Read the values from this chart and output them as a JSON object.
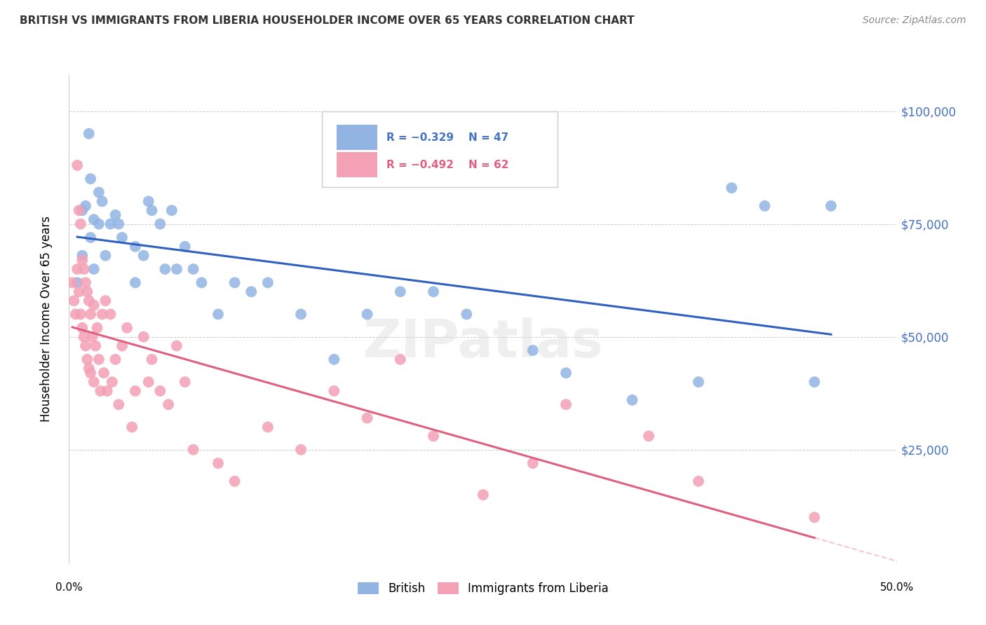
{
  "title": "BRITISH VS IMMIGRANTS FROM LIBERIA HOUSEHOLDER INCOME OVER 65 YEARS CORRELATION CHART",
  "source": "Source: ZipAtlas.com",
  "ylabel": "Householder Income Over 65 years",
  "legend_label_british": "British",
  "legend_label_liberia": "Immigrants from Liberia",
  "british_R": "-0.329",
  "british_N": "47",
  "liberia_R": "-0.492",
  "liberia_N": "62",
  "yticks": [
    0,
    25000,
    50000,
    75000,
    100000
  ],
  "ytick_labels": [
    "",
    "$25,000",
    "$50,000",
    "$75,000",
    "$100,000"
  ],
  "xlim": [
    0.0,
    0.5
  ],
  "ylim": [
    0,
    108000
  ],
  "british_color": "#92b4e3",
  "liberia_color": "#f4a0b5",
  "british_line_color": "#3060c0",
  "liberia_line_color": "#e06080",
  "watermark": "ZIPatlas",
  "british_x": [
    0.005,
    0.008,
    0.008,
    0.01,
    0.012,
    0.013,
    0.013,
    0.015,
    0.015,
    0.018,
    0.018,
    0.02,
    0.022,
    0.025,
    0.028,
    0.03,
    0.032,
    0.04,
    0.04,
    0.045,
    0.048,
    0.05,
    0.055,
    0.058,
    0.062,
    0.065,
    0.07,
    0.075,
    0.08,
    0.09,
    0.1,
    0.11,
    0.12,
    0.14,
    0.16,
    0.18,
    0.2,
    0.22,
    0.24,
    0.28,
    0.3,
    0.34,
    0.38,
    0.4,
    0.42,
    0.45,
    0.46
  ],
  "british_y": [
    62000,
    78000,
    68000,
    79000,
    95000,
    85000,
    72000,
    76000,
    65000,
    82000,
    75000,
    80000,
    68000,
    75000,
    77000,
    75000,
    72000,
    62000,
    70000,
    68000,
    80000,
    78000,
    75000,
    65000,
    78000,
    65000,
    70000,
    65000,
    62000,
    55000,
    62000,
    60000,
    62000,
    55000,
    45000,
    55000,
    60000,
    60000,
    55000,
    47000,
    42000,
    36000,
    40000,
    83000,
    79000,
    40000,
    79000
  ],
  "liberia_x": [
    0.002,
    0.003,
    0.004,
    0.005,
    0.005,
    0.006,
    0.006,
    0.007,
    0.007,
    0.008,
    0.008,
    0.009,
    0.009,
    0.01,
    0.01,
    0.011,
    0.011,
    0.012,
    0.012,
    0.013,
    0.013,
    0.014,
    0.015,
    0.015,
    0.016,
    0.017,
    0.018,
    0.019,
    0.02,
    0.021,
    0.022,
    0.023,
    0.025,
    0.026,
    0.028,
    0.03,
    0.032,
    0.035,
    0.038,
    0.04,
    0.045,
    0.048,
    0.05,
    0.055,
    0.06,
    0.065,
    0.07,
    0.075,
    0.09,
    0.1,
    0.12,
    0.14,
    0.16,
    0.18,
    0.2,
    0.22,
    0.25,
    0.28,
    0.3,
    0.35,
    0.38,
    0.45
  ],
  "liberia_y": [
    62000,
    58000,
    55000,
    88000,
    65000,
    78000,
    60000,
    75000,
    55000,
    67000,
    52000,
    65000,
    50000,
    62000,
    48000,
    60000,
    45000,
    58000,
    43000,
    55000,
    42000,
    50000,
    57000,
    40000,
    48000,
    52000,
    45000,
    38000,
    55000,
    42000,
    58000,
    38000,
    55000,
    40000,
    45000,
    35000,
    48000,
    52000,
    30000,
    38000,
    50000,
    40000,
    45000,
    38000,
    35000,
    48000,
    40000,
    25000,
    22000,
    18000,
    30000,
    25000,
    38000,
    32000,
    45000,
    28000,
    15000,
    22000,
    35000,
    28000,
    18000,
    10000
  ]
}
